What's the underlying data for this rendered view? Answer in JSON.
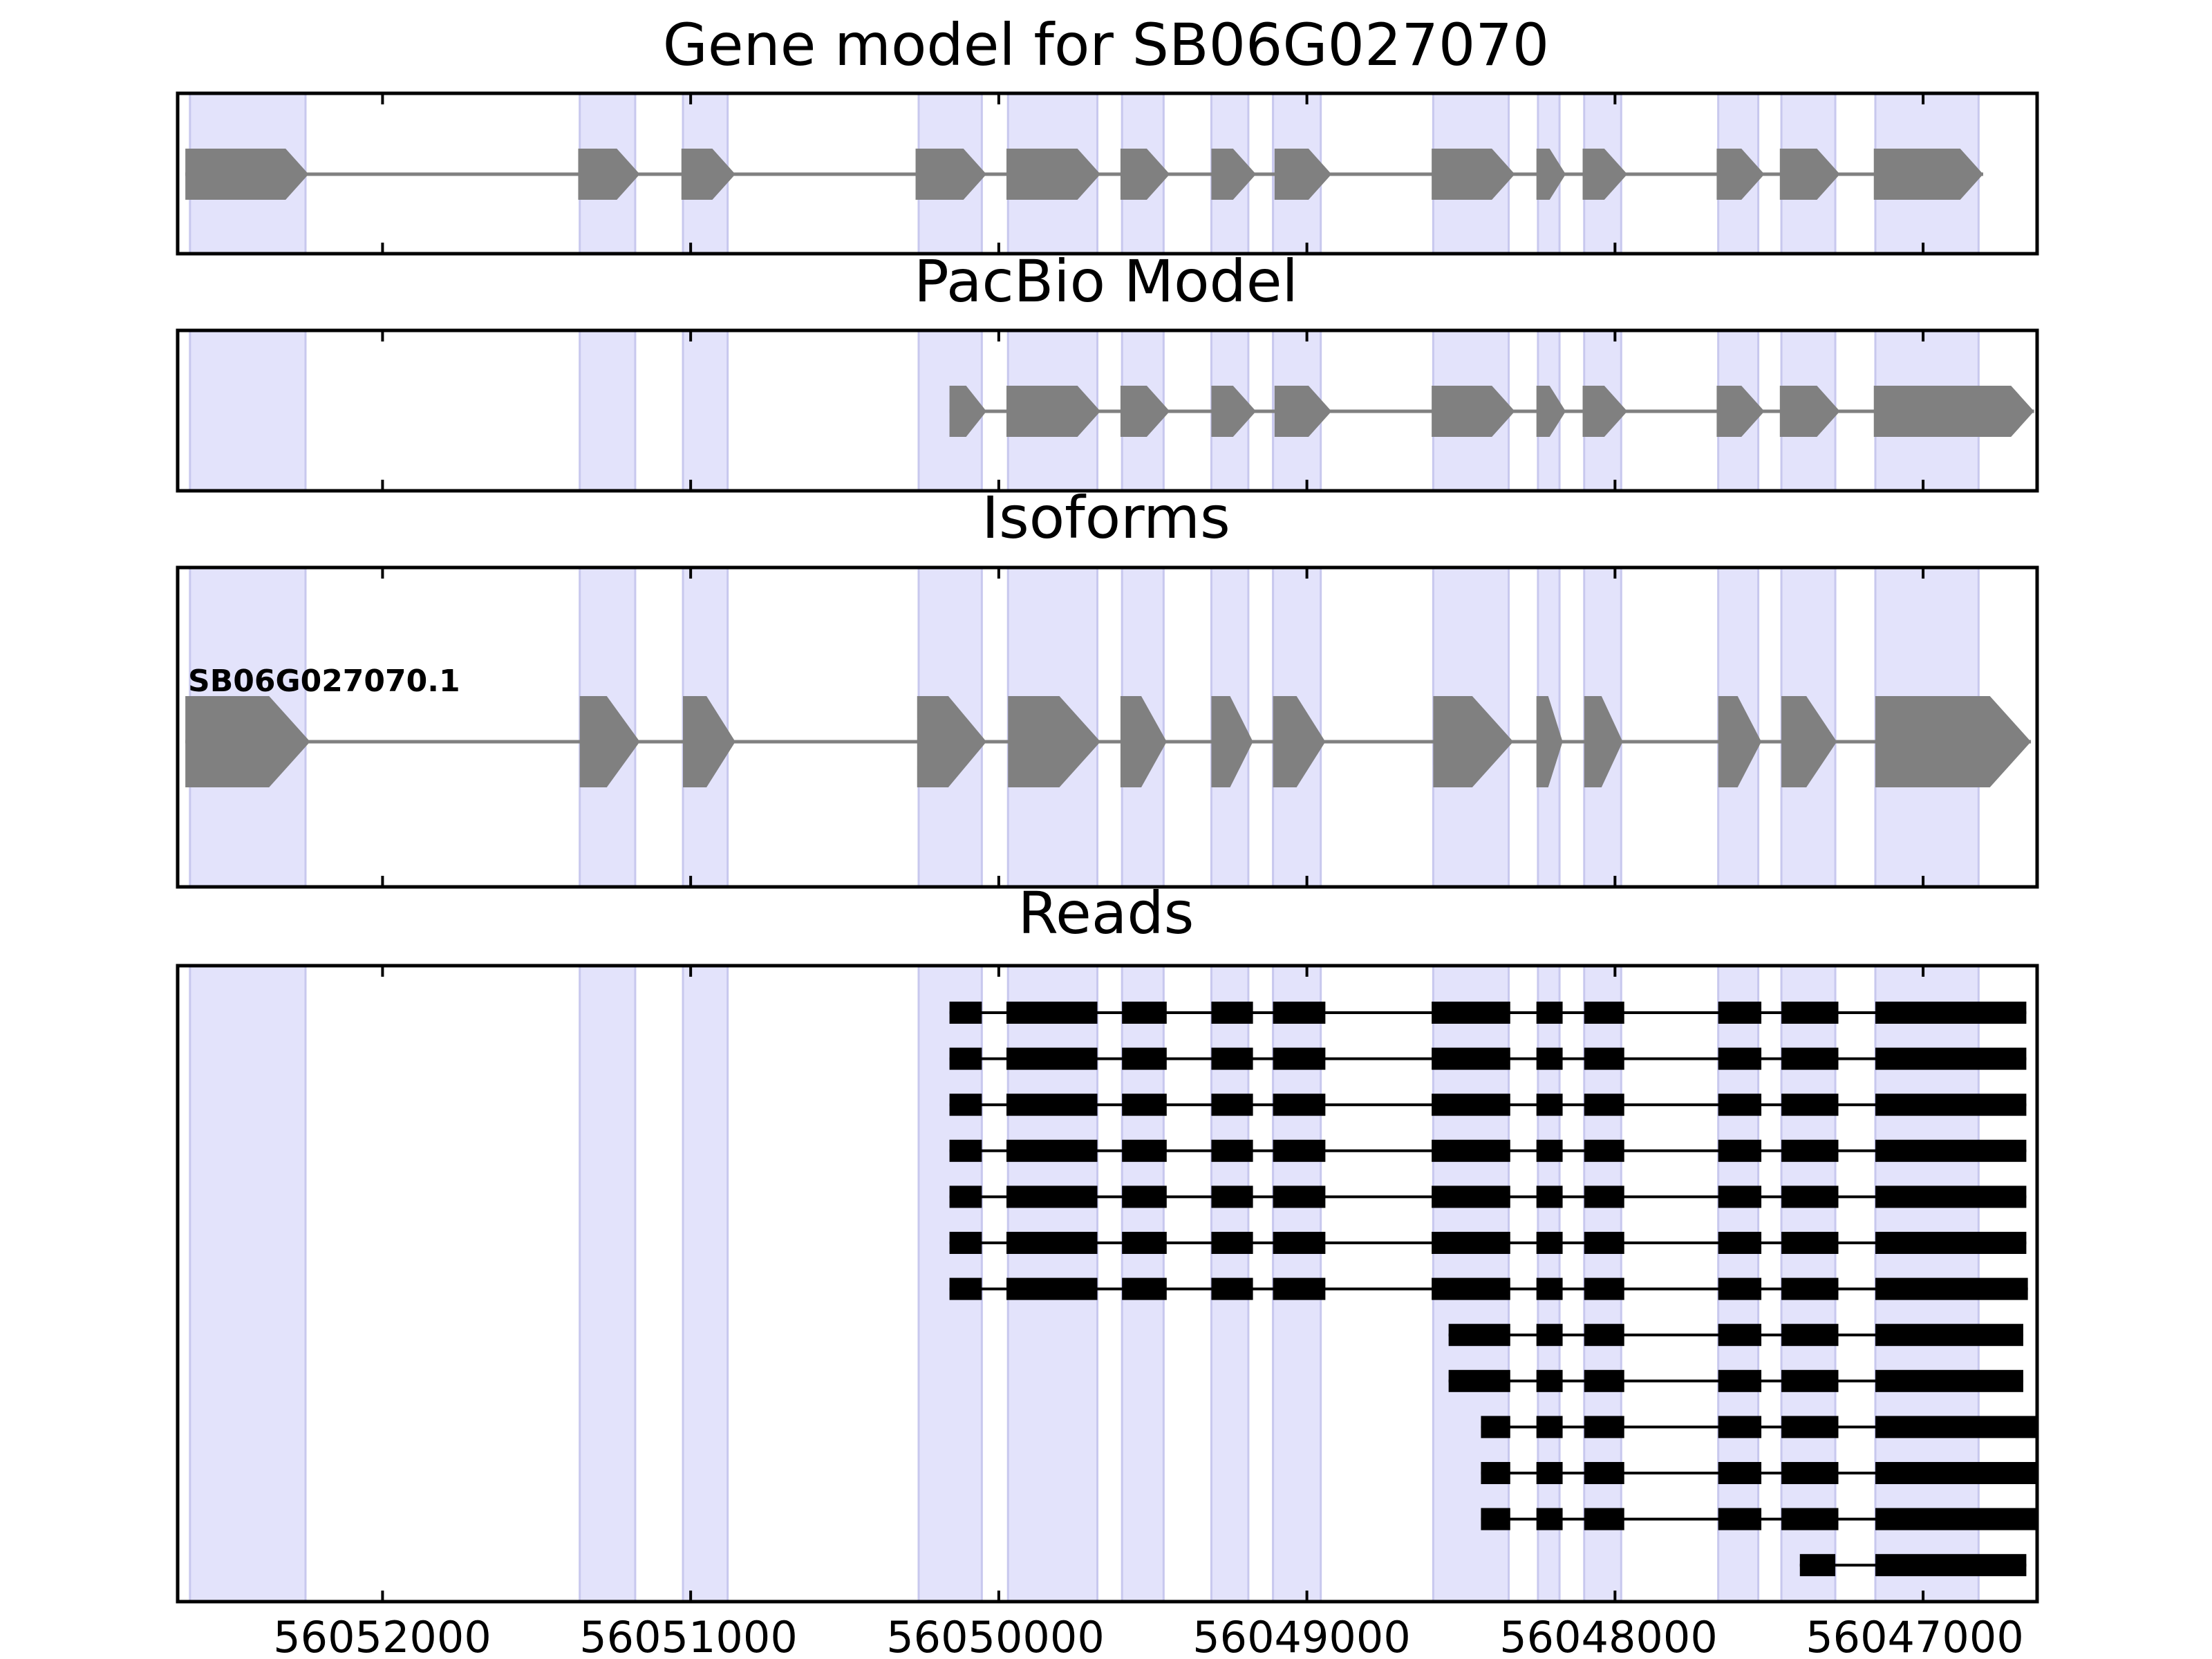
{
  "chart_data": {
    "type": "gene-model-tracks",
    "x_axis": {
      "direction": "reversed",
      "range": [
        56052665,
        56046630
      ],
      "ticks": [
        56052000,
        56051000,
        56050000,
        56049000,
        56048000,
        56047000
      ],
      "tick_labels": [
        "56052000",
        "56051000",
        "56050000",
        "56049000",
        "56048000",
        "56047000"
      ]
    },
    "exon_bands": [
      [
        56052625,
        56052250
      ],
      [
        56051360,
        56051180
      ],
      [
        56051025,
        56050880
      ],
      [
        56050260,
        56050055
      ],
      [
        56049970,
        56049680
      ],
      [
        56049600,
        56049465
      ],
      [
        56049310,
        56049190
      ],
      [
        56049110,
        56048955
      ],
      [
        56048590,
        56048345
      ],
      [
        56048250,
        56048180
      ],
      [
        56048100,
        56047980
      ],
      [
        56047665,
        56047535
      ],
      [
        56047460,
        56047285
      ],
      [
        56047155,
        56046820
      ]
    ],
    "panels": [
      {
        "title": "Gene model for SB06G027070",
        "features": [
          {
            "exons": [
              [
                56052640,
                56052240
              ],
              [
                56051365,
                56051165
              ],
              [
                56051030,
                56050855
              ],
              [
                56050270,
                56050040
              ],
              [
                56049975,
                56049670
              ],
              [
                56049605,
                56049445
              ],
              [
                56049310,
                56049165
              ],
              [
                56049105,
                56048920
              ],
              [
                56048595,
                56048325
              ],
              [
                56048255,
                56048160
              ],
              [
                56048105,
                56047960
              ],
              [
                56047670,
                56047515
              ],
              [
                56047465,
                56047270
              ],
              [
                56047160,
                56046805
              ]
            ]
          }
        ]
      },
      {
        "title": "PacBio Model",
        "features": [
          {
            "exons": [
              [
                56050160,
                56050040
              ],
              [
                56049975,
                56049670
              ],
              [
                56049605,
                56049445
              ],
              [
                56049310,
                56049165
              ],
              [
                56049105,
                56048920
              ],
              [
                56048595,
                56048325
              ],
              [
                56048255,
                56048160
              ],
              [
                56048105,
                56047960
              ],
              [
                56047670,
                56047515
              ],
              [
                56047465,
                56047270
              ],
              [
                56047160,
                56046640
              ]
            ]
          }
        ]
      },
      {
        "title": "Isoforms",
        "features": [
          {
            "label": "SB06G027070.1",
            "exons": [
              [
                56052640,
                56052235
              ],
              [
                56051360,
                56051165
              ],
              [
                56051025,
                56050855
              ],
              [
                56050265,
                56050040
              ],
              [
                56049970,
                56049670
              ],
              [
                56049605,
                56049455
              ],
              [
                56049310,
                56049175
              ],
              [
                56049110,
                56048940
              ],
              [
                56048590,
                56048330
              ],
              [
                56048255,
                56048170
              ],
              [
                56048100,
                56047975
              ],
              [
                56047665,
                56047525
              ],
              [
                56047460,
                56047280
              ],
              [
                56047155,
                56046650
              ]
            ]
          }
        ]
      },
      {
        "title": "Reads",
        "reads": [
          [
            [
              56050160,
              56050055
            ],
            [
              56049975,
              56049680
            ],
            [
              56049600,
              56049455
            ],
            [
              56049310,
              56049175
            ],
            [
              56049110,
              56048940
            ],
            [
              56048595,
              56048340
            ],
            [
              56048255,
              56048170
            ],
            [
              56048100,
              56047970
            ],
            [
              56047665,
              56047525
            ],
            [
              56047460,
              56047275
            ],
            [
              56047155,
              56046665
            ]
          ],
          [
            [
              56050160,
              56050055
            ],
            [
              56049975,
              56049680
            ],
            [
              56049600,
              56049455
            ],
            [
              56049310,
              56049175
            ],
            [
              56049110,
              56048940
            ],
            [
              56048595,
              56048340
            ],
            [
              56048255,
              56048170
            ],
            [
              56048100,
              56047970
            ],
            [
              56047665,
              56047525
            ],
            [
              56047460,
              56047275
            ],
            [
              56047155,
              56046665
            ]
          ],
          [
            [
              56050160,
              56050055
            ],
            [
              56049975,
              56049680
            ],
            [
              56049600,
              56049455
            ],
            [
              56049310,
              56049175
            ],
            [
              56049110,
              56048940
            ],
            [
              56048595,
              56048340
            ],
            [
              56048255,
              56048170
            ],
            [
              56048100,
              56047970
            ],
            [
              56047665,
              56047525
            ],
            [
              56047460,
              56047275
            ],
            [
              56047155,
              56046665
            ]
          ],
          [
            [
              56050160,
              56050055
            ],
            [
              56049975,
              56049680
            ],
            [
              56049600,
              56049455
            ],
            [
              56049310,
              56049175
            ],
            [
              56049110,
              56048940
            ],
            [
              56048595,
              56048340
            ],
            [
              56048255,
              56048170
            ],
            [
              56048100,
              56047970
            ],
            [
              56047665,
              56047525
            ],
            [
              56047460,
              56047275
            ],
            [
              56047155,
              56046665
            ]
          ],
          [
            [
              56050160,
              56050055
            ],
            [
              56049975,
              56049680
            ],
            [
              56049600,
              56049455
            ],
            [
              56049310,
              56049175
            ],
            [
              56049110,
              56048940
            ],
            [
              56048595,
              56048340
            ],
            [
              56048255,
              56048170
            ],
            [
              56048100,
              56047970
            ],
            [
              56047665,
              56047525
            ],
            [
              56047460,
              56047275
            ],
            [
              56047155,
              56046665
            ]
          ],
          [
            [
              56050160,
              56050055
            ],
            [
              56049975,
              56049680
            ],
            [
              56049600,
              56049455
            ],
            [
              56049310,
              56049175
            ],
            [
              56049110,
              56048940
            ],
            [
              56048595,
              56048340
            ],
            [
              56048255,
              56048170
            ],
            [
              56048100,
              56047970
            ],
            [
              56047665,
              56047525
            ],
            [
              56047460,
              56047275
            ],
            [
              56047155,
              56046665
            ]
          ],
          [
            [
              56050160,
              56050055
            ],
            [
              56049975,
              56049680
            ],
            [
              56049600,
              56049455
            ],
            [
              56049310,
              56049175
            ],
            [
              56049110,
              56048940
            ],
            [
              56048595,
              56048340
            ],
            [
              56048255,
              56048170
            ],
            [
              56048100,
              56047970
            ],
            [
              56047665,
              56047525
            ],
            [
              56047460,
              56047275
            ],
            [
              56047155,
              56046660
            ]
          ],
          [
            [
              56048540,
              56048340
            ],
            [
              56048255,
              56048170
            ],
            [
              56048100,
              56047970
            ],
            [
              56047665,
              56047525
            ],
            [
              56047460,
              56047275
            ],
            [
              56047155,
              56046675
            ]
          ],
          [
            [
              56048540,
              56048340
            ],
            [
              56048255,
              56048170
            ],
            [
              56048100,
              56047970
            ],
            [
              56047665,
              56047525
            ],
            [
              56047460,
              56047275
            ],
            [
              56047155,
              56046675
            ]
          ],
          [
            [
              56048435,
              56048340
            ],
            [
              56048255,
              56048170
            ],
            [
              56048100,
              56047970
            ],
            [
              56047665,
              56047525
            ],
            [
              56047460,
              56047275
            ],
            [
              56047155,
              56046630
            ]
          ],
          [
            [
              56048435,
              56048340
            ],
            [
              56048255,
              56048170
            ],
            [
              56048100,
              56047970
            ],
            [
              56047665,
              56047525
            ],
            [
              56047460,
              56047275
            ],
            [
              56047155,
              56046630
            ]
          ],
          [
            [
              56048435,
              56048340
            ],
            [
              56048255,
              56048170
            ],
            [
              56048100,
              56047970
            ],
            [
              56047665,
              56047525
            ],
            [
              56047460,
              56047275
            ],
            [
              56047155,
              56046630
            ]
          ],
          [
            [
              56047400,
              56047285
            ],
            [
              56047155,
              56046665
            ]
          ]
        ]
      }
    ]
  },
  "colors": {
    "band": "#e3e3fb",
    "band_edge": "#c8c8ee",
    "exon_model": "#808080",
    "intron_model": "#808080",
    "read": "#000000",
    "frame": "#000000"
  }
}
